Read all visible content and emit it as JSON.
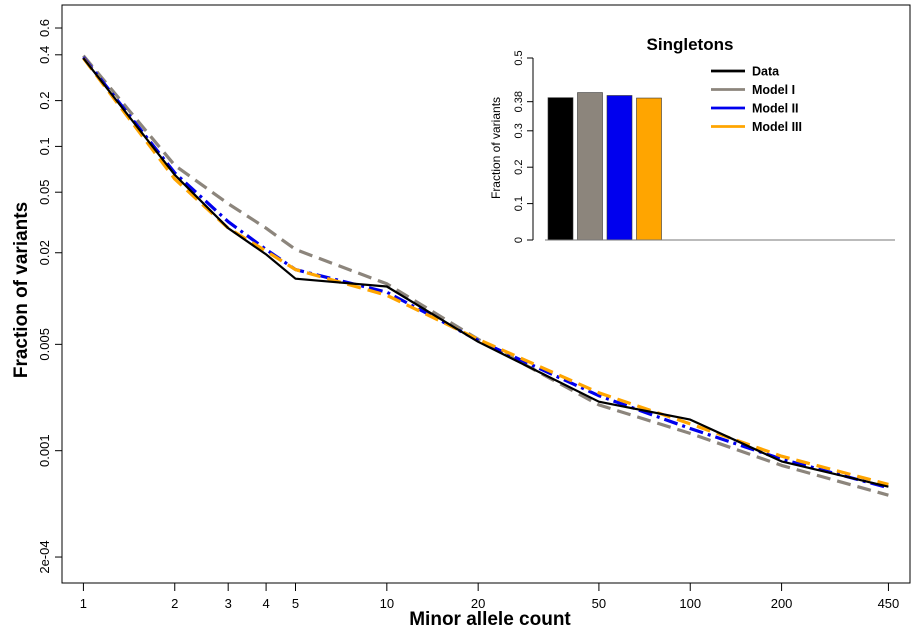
{
  "chart_data": [
    {
      "type": "line",
      "xlabel": "Minor allele count",
      "ylabel": "Fraction of variants",
      "x_scale": "log",
      "y_scale": "log",
      "xlim": [
        0.85,
        530
      ],
      "ylim": [
        0.000135,
        0.85
      ],
      "x_ticks": [
        1,
        2,
        3,
        4,
        5,
        10,
        20,
        50,
        100,
        200,
        450
      ],
      "y_ticks": [
        {
          "value": 0.6,
          "label": "0.6"
        },
        {
          "value": 0.4,
          "label": "0.4"
        },
        {
          "value": 0.2,
          "label": "0.2"
        },
        {
          "value": 0.1,
          "label": "0.1"
        },
        {
          "value": 0.05,
          "label": "0.05"
        },
        {
          "value": 0.02,
          "label": "0.02"
        },
        {
          "value": 0.005,
          "label": "0.005"
        },
        {
          "value": 0.001,
          "label": "0.001"
        },
        {
          "value": 0.0002,
          "label": "2e-04"
        }
      ],
      "series": [
        {
          "name": "Data",
          "color": "#000000",
          "dash": "solid",
          "points": [
            [
              1,
              0.38
            ],
            [
              2,
              0.065
            ],
            [
              3,
              0.029
            ],
            [
              4,
              0.0195
            ],
            [
              5,
              0.0135
            ],
            [
              10,
              0.012
            ],
            [
              20,
              0.0052
            ],
            [
              50,
              0.0021
            ],
            [
              100,
              0.0016
            ],
            [
              200,
              0.00085
            ],
            [
              450,
              0.00058
            ]
          ]
        },
        {
          "name": "Model I",
          "color": "#8c857c",
          "dash": "dash",
          "points": [
            [
              1,
              0.395
            ],
            [
              2,
              0.075
            ],
            [
              3,
              0.042
            ],
            [
              4,
              0.029
            ],
            [
              5,
              0.021
            ],
            [
              10,
              0.0125
            ],
            [
              20,
              0.0054
            ],
            [
              50,
              0.002
            ],
            [
              100,
              0.0013
            ],
            [
              200,
              0.0008
            ],
            [
              450,
              0.00051
            ]
          ]
        },
        {
          "name": "Model II",
          "color": "#0000ee",
          "dash": "dashdot",
          "points": [
            [
              1,
              0.385
            ],
            [
              2,
              0.067
            ],
            [
              3,
              0.032
            ],
            [
              4,
              0.021
            ],
            [
              5,
              0.0155
            ],
            [
              10,
              0.011
            ],
            [
              20,
              0.0053
            ],
            [
              50,
              0.0023
            ],
            [
              100,
              0.0014
            ],
            [
              200,
              0.00088
            ],
            [
              450,
              0.00057
            ]
          ]
        },
        {
          "name": "Model III",
          "color": "#ffa500",
          "dash": "dash",
          "points": [
            [
              1,
              0.38
            ],
            [
              2,
              0.061
            ],
            [
              3,
              0.029
            ],
            [
              4,
              0.0205
            ],
            [
              5,
              0.0155
            ],
            [
              10,
              0.0105
            ],
            [
              20,
              0.0054
            ],
            [
              50,
              0.0024
            ],
            [
              100,
              0.0015
            ],
            [
              200,
              0.00092
            ],
            [
              450,
              0.0006
            ]
          ]
        }
      ]
    },
    {
      "type": "bar",
      "title": "Singletons",
      "ylabel": "Fraction of variants",
      "ylim": [
        0,
        0.5
      ],
      "y_ticks": [
        {
          "value": 0,
          "label": "0"
        },
        {
          "value": 0.1,
          "label": "0.1"
        },
        {
          "value": 0.2,
          "label": "0.2"
        },
        {
          "value": 0.3,
          "label": "0.3"
        },
        {
          "value": 0.38,
          "label": "0.38"
        },
        {
          "value": 0.5,
          "label": "0.5"
        }
      ],
      "bars": [
        {
          "name": "Data",
          "value": 0.391,
          "color": "#000000"
        },
        {
          "name": "Model I",
          "value": 0.405,
          "color": "#8c857c"
        },
        {
          "name": "Model II",
          "value": 0.397,
          "color": "#0000ee"
        },
        {
          "name": "Model III",
          "value": 0.39,
          "color": "#ffa500"
        }
      ],
      "legend": [
        "Data",
        "Model I",
        "Model II",
        "Model III"
      ]
    }
  ]
}
